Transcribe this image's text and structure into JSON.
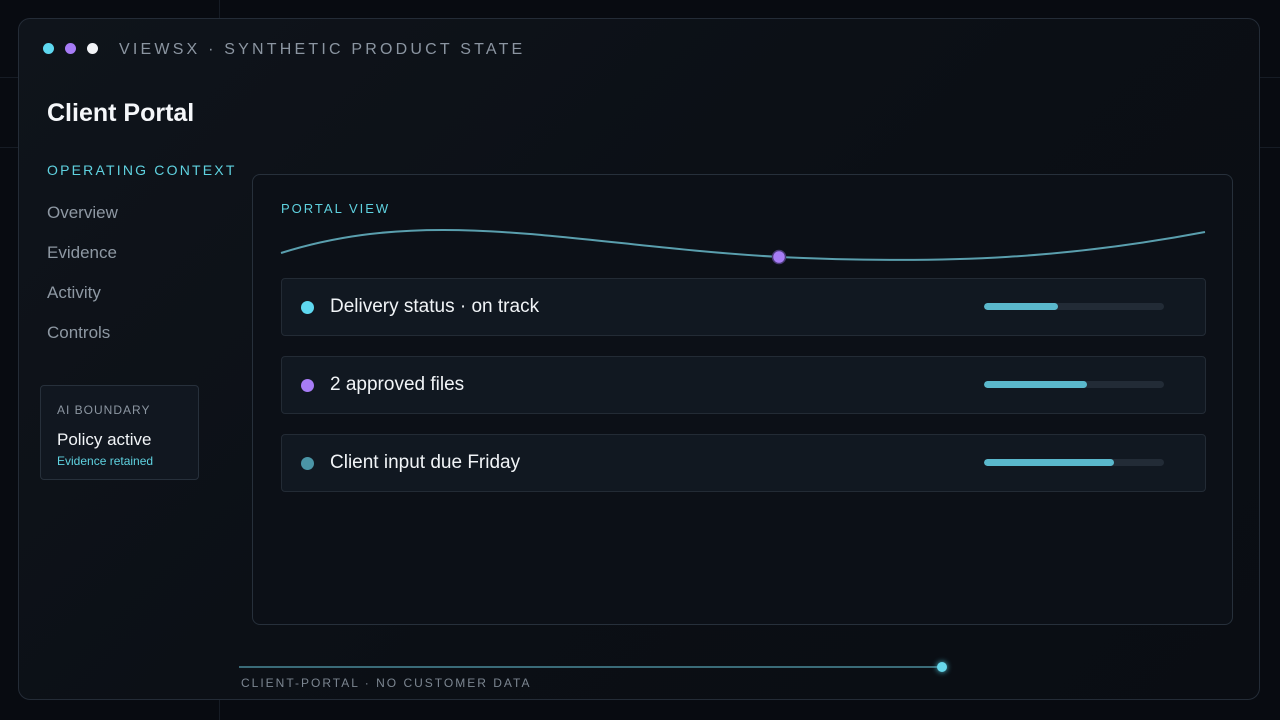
{
  "window": {
    "title": "VIEWSX · SYNTHETIC PRODUCT STATE",
    "controls": [
      {
        "icon": "window-dot-cyan-icon",
        "color": "#5ed8f0"
      },
      {
        "icon": "window-dot-purple-icon",
        "color": "#a77cf6"
      },
      {
        "icon": "window-dot-white-icon",
        "color": "#f2f4f7"
      }
    ]
  },
  "app": {
    "title": "Client Portal"
  },
  "sidebar": {
    "section_label": "OPERATING CONTEXT",
    "items": [
      {
        "label": "Overview"
      },
      {
        "label": "Evidence"
      },
      {
        "label": "Activity"
      },
      {
        "label": "Controls"
      }
    ],
    "ai_boundary": {
      "kicker": "AI BOUNDARY",
      "title": "Policy active",
      "subtitle": "Evidence retained"
    }
  },
  "main": {
    "panel_label": "PORTAL VIEW",
    "marker_color": "#a77cf6",
    "rows": [
      {
        "text": "Delivery status · on track",
        "dot_color": "#5ed8f0",
        "progress": 0.41
      },
      {
        "text": "2 approved files",
        "dot_color": "#a77cf6",
        "progress": 0.57
      },
      {
        "text": "Client input due Friday",
        "dot_color": "#4b95a6",
        "progress": 0.72
      }
    ]
  },
  "footer": {
    "text": "CLIENT-PORTAL · NO CUSTOMER DATA"
  },
  "colors": {
    "accent": "#5fd2e0",
    "purple": "#a77cf6",
    "background": "#080b11"
  }
}
